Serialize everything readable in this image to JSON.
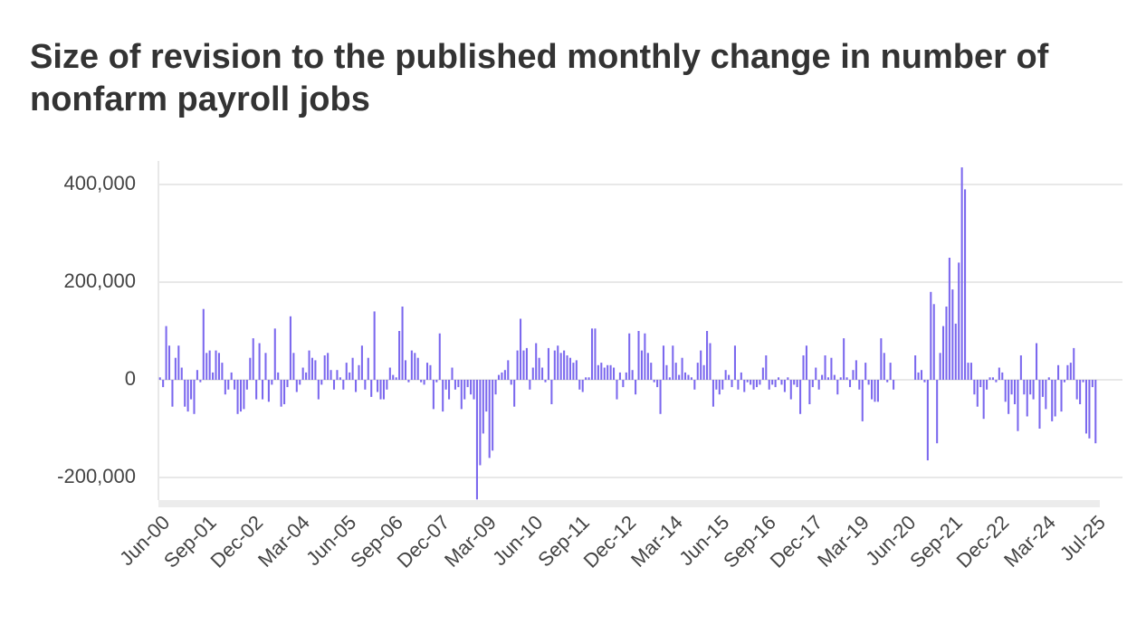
{
  "chart_data": {
    "type": "bar",
    "title": "Size of revision to the published monthly change in number of nonfarm payroll jobs",
    "color": "#7b68ee",
    "grid": true,
    "ylim": [
      -250000,
      450000
    ],
    "yticks": [
      {
        "value": -200000,
        "label": "-200,000"
      },
      0,
      {
        "value": 200000,
        "label": "200,000"
      },
      {
        "value": 400000,
        "label": "400,000"
      }
    ],
    "categories": [
      "Jun-00",
      null,
      null,
      null,
      null,
      null,
      null,
      null,
      null,
      null,
      null,
      null,
      null,
      null,
      null,
      "Sep-01",
      null,
      null,
      null,
      null,
      null,
      null,
      null,
      null,
      null,
      null,
      null,
      null,
      null,
      null,
      "Dec-02",
      null,
      null,
      null,
      null,
      null,
      null,
      null,
      null,
      null,
      null,
      null,
      null,
      null,
      null,
      "Mar-04",
      null,
      null,
      null,
      null,
      null,
      null,
      null,
      null,
      null,
      null,
      null,
      null,
      null,
      null,
      "Jun-05",
      null,
      null,
      null,
      null,
      null,
      null,
      null,
      null,
      null,
      null,
      null,
      null,
      null,
      null,
      "Sep-06",
      null,
      null,
      null,
      null,
      null,
      null,
      null,
      null,
      null,
      null,
      null,
      null,
      null,
      null,
      "Dec-07",
      null,
      null,
      null,
      null,
      null,
      null,
      null,
      null,
      null,
      null,
      null,
      null,
      null,
      null,
      "Mar-09",
      null,
      null,
      null,
      null,
      null,
      null,
      null,
      null,
      null,
      null,
      null,
      null,
      null,
      null,
      "Jun-10",
      null,
      null,
      null,
      null,
      null,
      null,
      null,
      null,
      null,
      null,
      null,
      null,
      null,
      null,
      "Sep-11",
      null,
      null,
      null,
      null,
      null,
      null,
      null,
      null,
      null,
      null,
      null,
      null,
      null,
      null,
      "Dec-12",
      null,
      null,
      null,
      null,
      null,
      null,
      null,
      null,
      null,
      null,
      null,
      null,
      null,
      null,
      "Mar-14",
      null,
      null,
      null,
      null,
      null,
      null,
      null,
      null,
      null,
      null,
      null,
      null,
      null,
      null,
      "Jun-15",
      null,
      null,
      null,
      null,
      null,
      null,
      null,
      null,
      null,
      null,
      null,
      null,
      null,
      null,
      "Sep-16",
      null,
      null,
      null,
      null,
      null,
      null,
      null,
      null,
      null,
      null,
      null,
      null,
      null,
      null,
      "Dec-17",
      null,
      null,
      null,
      null,
      null,
      null,
      null,
      null,
      null,
      null,
      null,
      null,
      null,
      null,
      "Mar-19",
      null,
      null,
      null,
      null,
      null,
      null,
      null,
      null,
      null,
      null,
      null,
      null,
      null,
      null,
      "Jun-20",
      null,
      null,
      null,
      null,
      null,
      null,
      null,
      null,
      null,
      null,
      null,
      null,
      null,
      null,
      "Sep-21",
      null,
      null,
      null,
      null,
      null,
      null,
      null,
      null,
      null,
      null,
      null,
      null,
      null,
      null,
      "Dec-22",
      null,
      null,
      null,
      null,
      null,
      null,
      null,
      null,
      null,
      null,
      null,
      null,
      null,
      null,
      "Mar-24",
      null,
      null,
      null,
      null,
      null,
      null,
      null,
      null,
      null,
      null,
      null,
      null,
      null,
      null,
      null,
      "Jul-25"
    ],
    "values": [
      5000,
      -15000,
      110000,
      70000,
      -55000,
      45000,
      70000,
      25000,
      -55000,
      -65000,
      -40000,
      -70000,
      20000,
      -5000,
      145000,
      55000,
      60000,
      15000,
      60000,
      55000,
      35000,
      -30000,
      -20000,
      15000,
      -20000,
      -70000,
      -65000,
      -60000,
      -20000,
      45000,
      85000,
      -40000,
      75000,
      -40000,
      55000,
      -45000,
      -10000,
      105000,
      15000,
      -55000,
      -50000,
      -15000,
      130000,
      55000,
      -25000,
      -10000,
      25000,
      15000,
      60000,
      45000,
      40000,
      -40000,
      -10000,
      50000,
      55000,
      20000,
      -20000,
      20000,
      5000,
      -20000,
      35000,
      15000,
      45000,
      -25000,
      30000,
      70000,
      -20000,
      45000,
      -35000,
      140000,
      -25000,
      -40000,
      -40000,
      -20000,
      25000,
      10000,
      5000,
      100000,
      150000,
      40000,
      -5000,
      60000,
      55000,
      45000,
      -5000,
      -10000,
      35000,
      30000,
      -60000,
      -5000,
      95000,
      -65000,
      -20000,
      -40000,
      25000,
      -20000,
      -15000,
      -60000,
      -40000,
      -15000,
      -30000,
      -40000,
      -245000,
      -175000,
      -110000,
      -65000,
      -160000,
      -145000,
      -30000,
      10000,
      15000,
      20000,
      40000,
      -10000,
      -55000,
      60000,
      125000,
      60000,
      65000,
      -20000,
      25000,
      75000,
      45000,
      25000,
      -5000,
      65000,
      -50000,
      60000,
      70000,
      55000,
      60000,
      50000,
      45000,
      35000,
      40000,
      -20000,
      -25000,
      5000,
      5000,
      105000,
      105000,
      30000,
      35000,
      25000,
      30000,
      30000,
      25000,
      -40000,
      15000,
      -15000,
      15000,
      95000,
      20000,
      -30000,
      100000,
      60000,
      95000,
      55000,
      35000,
      -5000,
      -15000,
      -70000,
      70000,
      30000,
      5000,
      70000,
      35000,
      10000,
      45000,
      15000,
      10000,
      5000,
      -20000,
      35000,
      60000,
      30000,
      100000,
      75000,
      -55000,
      -20000,
      -30000,
      -20000,
      20000,
      10000,
      -15000,
      70000,
      -20000,
      15000,
      -25000,
      -5000,
      -10000,
      -20000,
      -15000,
      -10000,
      25000,
      50000,
      -20000,
      -10000,
      -15000,
      5000,
      -10000,
      -25000,
      5000,
      -40000,
      -10000,
      -15000,
      -70000,
      50000,
      70000,
      -50000,
      -15000,
      25000,
      -20000,
      10000,
      50000,
      5000,
      45000,
      10000,
      -30000,
      5000,
      85000,
      5000,
      -15000,
      20000,
      40000,
      -20000,
      -85000,
      35000,
      -10000,
      -40000,
      -45000,
      -45000,
      85000,
      55000,
      -5000,
      35000,
      -20000,
      0,
      0,
      0,
      0,
      0,
      0,
      50000,
      15000,
      20000,
      -5000,
      -165000,
      180000,
      155000,
      -130000,
      55000,
      110000,
      150000,
      250000,
      185000,
      115000,
      240000,
      435000,
      390000,
      35000,
      35000,
      -30000,
      -55000,
      -15000,
      -80000,
      -20000,
      5000,
      5000,
      -5000,
      25000,
      15000,
      -45000,
      -70000,
      -30000,
      -50000,
      -105000,
      50000,
      -30000,
      -75000,
      -30000,
      -40000,
      75000,
      -100000,
      -35000,
      -60000,
      5000,
      -85000,
      -75000,
      30000,
      -65000,
      -5000,
      30000,
      35000,
      65000,
      -40000,
      -50000,
      -5000,
      -110000,
      -120000,
      -15000,
      -130000
    ]
  }
}
